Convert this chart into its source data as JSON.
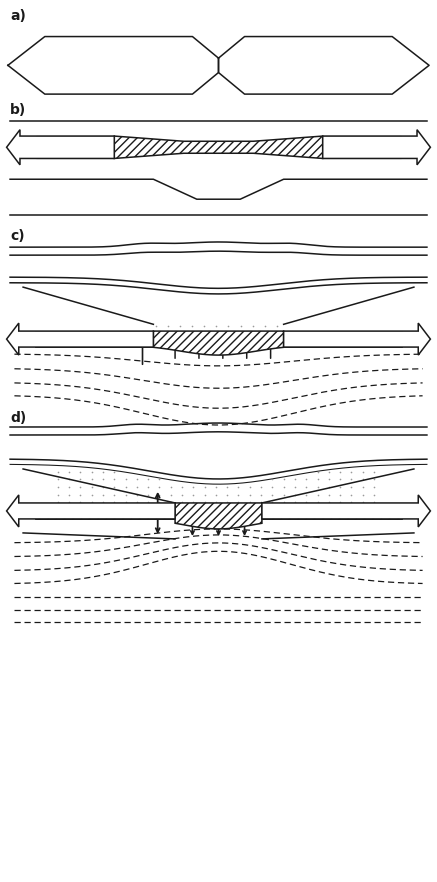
{
  "bg_color": "#ffffff",
  "line_color": "#1a1a1a",
  "label_a": "a)",
  "label_b": "b)",
  "label_c": "c)",
  "label_d": "d)",
  "fig_width": 4.37,
  "fig_height": 8.82,
  "lw": 1.1
}
